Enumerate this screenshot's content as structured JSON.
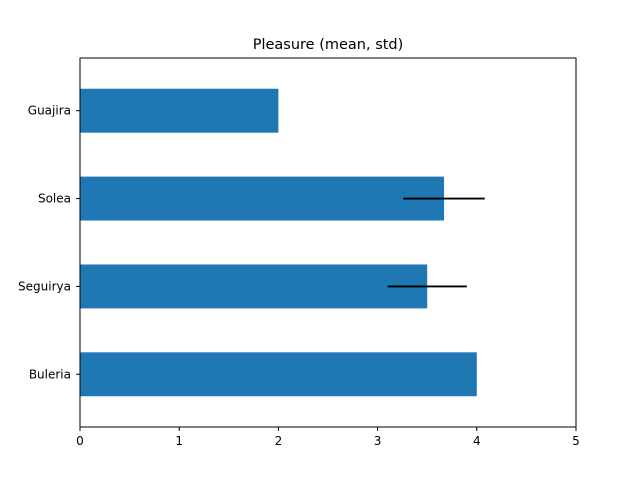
{
  "chart_data": {
    "type": "bar",
    "orientation": "horizontal",
    "title": "Pleasure (mean, std)",
    "xlabel": "",
    "ylabel": "",
    "categories": [
      "Buleria",
      "Seguirya",
      "Solea",
      "Guajira"
    ],
    "values": [
      4.0,
      3.5,
      3.67,
      2.0
    ],
    "error": [
      null,
      0.4,
      0.41,
      null
    ],
    "xlim": [
      0,
      5
    ],
    "xticks": [
      0,
      1,
      2,
      3,
      4,
      5
    ],
    "grid": false,
    "legend": "none",
    "bar_color": "#1f77b4",
    "error_color": "#000000"
  }
}
